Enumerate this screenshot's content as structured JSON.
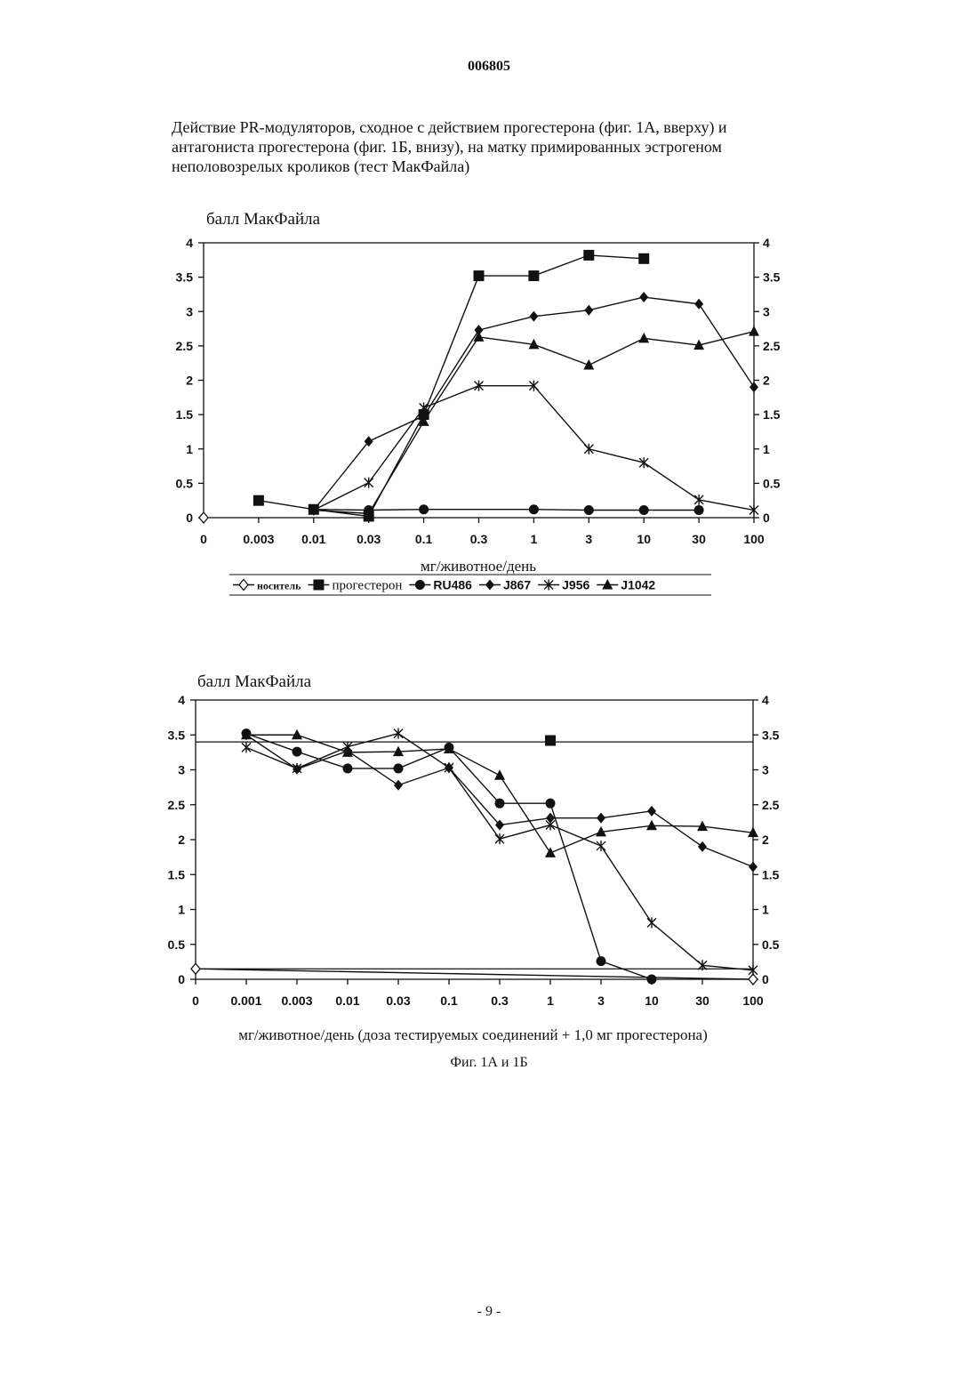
{
  "document": {
    "page_number_top": "006805",
    "caption_lines": [
      "Действие PR-модуляторов, сходное с действием прогестерона (фиг. 1А, вверху) и",
      "антагониста прогестерона (фиг. 1Б, внизу), на матку примированных эстрогеном",
      "неполовозрелых кроликов (тест МакФайла)"
    ],
    "figure_label": "Фиг. 1А и 1Б",
    "page_number_bottom": "- 9 -"
  },
  "chart_data": [
    {
      "type": "line",
      "title": "балл МакФайла",
      "xlabel": "мг/животное/день",
      "ylabel": "",
      "categories": [
        "0",
        "0.003",
        "0.01",
        "0.03",
        "0.1",
        "0.3",
        "1",
        "3",
        "10",
        "30",
        "100"
      ],
      "x_scale": "categorical",
      "ylim": [
        0,
        4
      ],
      "yticks": [
        "0",
        "0.5",
        "1",
        "1.5",
        "2",
        "2.5",
        "3",
        "3.5",
        "4"
      ],
      "y_axes": "left and right",
      "grid": false,
      "legend_position": "bottom, boxed under x-axis label",
      "series": [
        {
          "name": "носитель",
          "marker": "open-diamond",
          "values": [
            0,
            null,
            null,
            null,
            null,
            null,
            null,
            null,
            null,
            null,
            null
          ]
        },
        {
          "name": "прогестерон",
          "marker": "square",
          "values": [
            null,
            0.25,
            0.12,
            0.02,
            1.5,
            3.52,
            3.52,
            3.82,
            3.77,
            null,
            null
          ]
        },
        {
          "name": "RU486",
          "marker": "circle",
          "values": [
            null,
            null,
            0.12,
            0.11,
            0.12,
            null,
            0.12,
            0.11,
            0.11,
            0.11,
            null
          ]
        },
        {
          "name": "J867",
          "marker": "diamond",
          "values": [
            null,
            null,
            0.11,
            1.11,
            1.48,
            2.73,
            2.93,
            3.02,
            3.21,
            3.11,
            1.9
          ]
        },
        {
          "name": "J956",
          "marker": "asterisk",
          "values": [
            null,
            null,
            0.11,
            0.51,
            1.6,
            1.92,
            1.92,
            1.0,
            0.8,
            0.26,
            0.11
          ]
        },
        {
          "name": "J1042",
          "marker": "triangle",
          "values": [
            null,
            null,
            0.11,
            0.06,
            1.4,
            2.63,
            2.52,
            2.22,
            2.61,
            2.51,
            2.71
          ]
        }
      ]
    },
    {
      "type": "line",
      "title": "балл МакФайла",
      "xlabel": "мг/животное/день (доза тестируемых соединений + 1,0 мг прогестерона)",
      "ylabel": "",
      "categories": [
        "0",
        "0.001",
        "0.003",
        "0.01",
        "0.03",
        "0.1",
        "0.3",
        "1",
        "3",
        "10",
        "30",
        "100"
      ],
      "x_scale": "categorical",
      "ylim": [
        0,
        4
      ],
      "yticks": [
        "0",
        "0.5",
        "1",
        "1.5",
        "2",
        "2.5",
        "3",
        "3.5",
        "4"
      ],
      "y_axes": "left and right",
      "grid": false,
      "reference_lines": [
        {
          "label": "прогестерон",
          "y": 3.4
        },
        {
          "label": "носитель",
          "y": 0.15
        }
      ],
      "series": [
        {
          "name": "носитель",
          "marker": "open-diamond",
          "values": [
            0.15,
            null,
            null,
            null,
            null,
            null,
            null,
            null,
            null,
            null,
            null,
            0.0
          ]
        },
        {
          "name": "прогестерон",
          "marker": "square",
          "values": [
            null,
            null,
            null,
            null,
            null,
            null,
            null,
            3.42,
            null,
            null,
            null,
            null
          ]
        },
        {
          "name": "RU486",
          "marker": "circle",
          "values": [
            null,
            3.52,
            3.26,
            3.02,
            3.02,
            3.32,
            2.52,
            2.52,
            0.26,
            0.0,
            null,
            null
          ]
        },
        {
          "name": "J867",
          "marker": "diamond",
          "values": [
            null,
            3.5,
            3.01,
            3.27,
            2.78,
            3.03,
            2.21,
            2.31,
            2.31,
            2.41,
            1.9,
            1.61
          ]
        },
        {
          "name": "J956",
          "marker": "asterisk",
          "values": [
            null,
            3.32,
            3.02,
            3.33,
            3.52,
            3.03,
            2.01,
            2.21,
            1.91,
            0.81,
            0.2,
            0.13
          ]
        },
        {
          "name": "J1042",
          "marker": "triangle",
          "values": [
            null,
            3.5,
            3.5,
            3.25,
            3.26,
            3.3,
            2.92,
            1.81,
            2.11,
            2.2,
            2.19,
            2.1
          ]
        }
      ]
    }
  ]
}
